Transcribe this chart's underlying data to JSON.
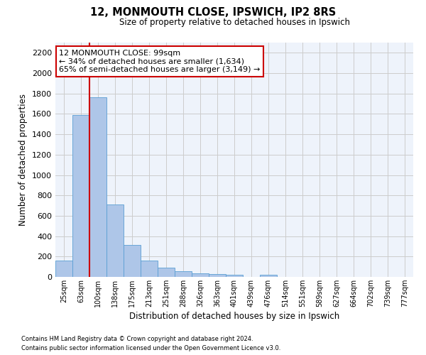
{
  "title_line1": "12, MONMOUTH CLOSE, IPSWICH, IP2 8RS",
  "title_line2": "Size of property relative to detached houses in Ipswich",
  "xlabel": "Distribution of detached houses by size in Ipswich",
  "ylabel": "Number of detached properties",
  "categories": [
    "25sqm",
    "63sqm",
    "100sqm",
    "138sqm",
    "175sqm",
    "213sqm",
    "251sqm",
    "288sqm",
    "326sqm",
    "363sqm",
    "401sqm",
    "439sqm",
    "476sqm",
    "514sqm",
    "551sqm",
    "589sqm",
    "627sqm",
    "664sqm",
    "702sqm",
    "739sqm",
    "777sqm"
  ],
  "values": [
    160,
    1590,
    1760,
    710,
    315,
    160,
    90,
    55,
    35,
    25,
    20,
    0,
    20,
    0,
    0,
    0,
    0,
    0,
    0,
    0,
    0
  ],
  "bar_color": "#aec6e8",
  "bar_edge_color": "#5a9fd4",
  "grid_color": "#cccccc",
  "background_color": "#eef3fb",
  "fig_background_color": "#ffffff",
  "vline_color": "#cc0000",
  "vline_x_index": 2,
  "annotation_text": "12 MONMOUTH CLOSE: 99sqm\n← 34% of detached houses are smaller (1,634)\n65% of semi-detached houses are larger (3,149) →",
  "annotation_box_color": "#ffffff",
  "annotation_box_edge": "#cc0000",
  "ylim": [
    0,
    2300
  ],
  "yticks": [
    0,
    200,
    400,
    600,
    800,
    1000,
    1200,
    1400,
    1600,
    1800,
    2000,
    2200
  ],
  "footer_line1": "Contains HM Land Registry data © Crown copyright and database right 2024.",
  "footer_line2": "Contains public sector information licensed under the Open Government Licence v3.0."
}
